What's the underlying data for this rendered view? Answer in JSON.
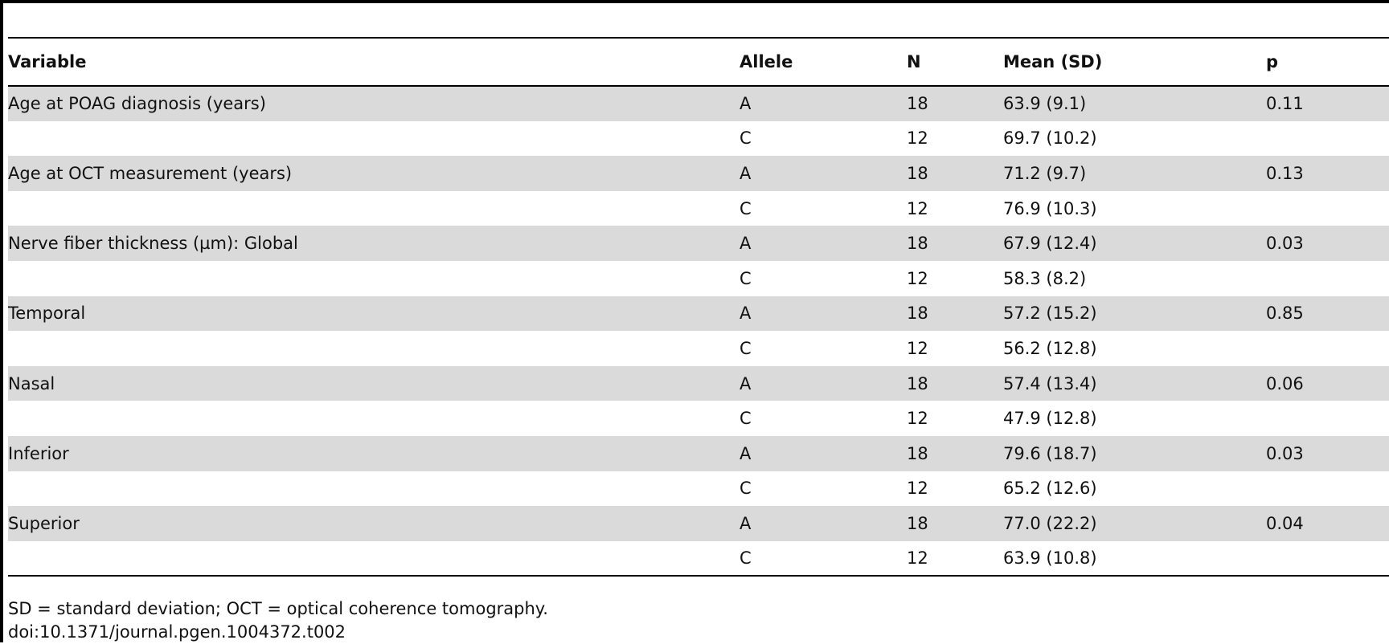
{
  "table": {
    "headers": [
      "Variable",
      "Allele",
      "N",
      "Mean (SD)",
      "p"
    ],
    "rows": [
      {
        "variable": "Age at POAG diagnosis (years)",
        "allele": "A",
        "n": "18",
        "mean_sd": "63.9 (9.1)",
        "p": "0.11"
      },
      {
        "variable": "",
        "allele": "C",
        "n": "12",
        "mean_sd": "69.7 (10.2)",
        "p": ""
      },
      {
        "variable": "Age at OCT measurement (years)",
        "allele": "A",
        "n": "18",
        "mean_sd": "71.2 (9.7)",
        "p": "0.13"
      },
      {
        "variable": "",
        "allele": "C",
        "n": "12",
        "mean_sd": "76.9 (10.3)",
        "p": ""
      },
      {
        "variable": "Nerve fiber thickness (µm): Global",
        "allele": "A",
        "n": "18",
        "mean_sd": "67.9 (12.4)",
        "p": "0.03"
      },
      {
        "variable": "",
        "allele": "C",
        "n": "12",
        "mean_sd": "58.3 (8.2)",
        "p": ""
      },
      {
        "variable": "Temporal",
        "allele": "A",
        "n": "18",
        "mean_sd": "57.2 (15.2)",
        "p": "0.85"
      },
      {
        "variable": "",
        "allele": "C",
        "n": "12",
        "mean_sd": "56.2 (12.8)",
        "p": ""
      },
      {
        "variable": "Nasal",
        "allele": "A",
        "n": "18",
        "mean_sd": "57.4 (13.4)",
        "p": "0.06"
      },
      {
        "variable": "",
        "allele": "C",
        "n": "12",
        "mean_sd": "47.9 (12.8)",
        "p": ""
      },
      {
        "variable": "Inferior",
        "allele": "A",
        "n": "18",
        "mean_sd": "79.6 (18.7)",
        "p": "0.03"
      },
      {
        "variable": "",
        "allele": "C",
        "n": "12",
        "mean_sd": "65.2 (12.6)",
        "p": ""
      },
      {
        "variable": "Superior",
        "allele": "A",
        "n": "18",
        "mean_sd": "77.0 (22.2)",
        "p": "0.04"
      },
      {
        "variable": "",
        "allele": "C",
        "n": "12",
        "mean_sd": "63.9 (10.8)",
        "p": ""
      }
    ]
  },
  "footnotes": {
    "abbreviations": "SD = standard deviation; OCT = optical coherence tomography.",
    "doi": "doi:10.1371/journal.pgen.1004372.t002"
  },
  "colors": {
    "shaded_row": "#dadada",
    "rule": "#000000"
  }
}
